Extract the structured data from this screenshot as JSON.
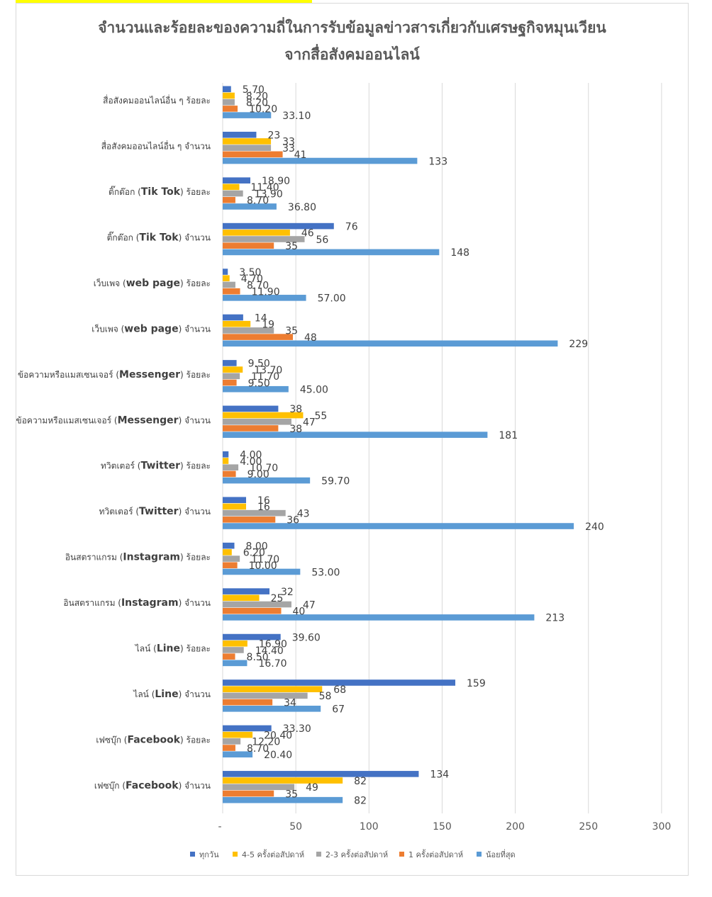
{
  "chart_data": {
    "type": "bar",
    "orientation": "horizontal",
    "title_line1": "จำนวนและร้อยละของความถี่ในการรับข้อมูลข่าวสารเกี่ยวกับเศรษฐกิจหมุนเวียน",
    "title_line2": "จากสื่อสังคมออนไลน์",
    "xlim": [
      0,
      300
    ],
    "xticks": [
      "-",
      "50",
      "100",
      "150",
      "200",
      "250",
      "300"
    ],
    "xtick_values": [
      0,
      50,
      100,
      150,
      200,
      250,
      300
    ],
    "grid": true,
    "legend_position": "bottom",
    "colors": [
      "#4472c4",
      "#ffc000",
      "#a5a5a5",
      "#ed7d31",
      "#5b9bd5"
    ],
    "categories": [
      {
        "pre": "สื่อสังคมออนไลน์อื่น ๆ ร้อยละ",
        "en": "",
        "post": ""
      },
      {
        "pre": "สื่อสังคมออนไลน์อื่น ๆ จำนวน",
        "en": "",
        "post": ""
      },
      {
        "pre": "ติ๊กต๊อก (",
        "en": "Tik Tok",
        "post": ") ร้อยละ"
      },
      {
        "pre": "ติ๊กต๊อก (",
        "en": "Tik Tok",
        "post": ") จำนวน"
      },
      {
        "pre": "เว็บเพจ (",
        "en": "web page",
        "post": ") ร้อยละ"
      },
      {
        "pre": "เว็บเพจ (",
        "en": "web page",
        "post": ") จำนวน"
      },
      {
        "pre": "ข้อความหรือแมสเซนเจอร์ (",
        "en": "Messenger",
        "post": ") ร้อยละ"
      },
      {
        "pre": "ข้อความหรือแมสเซนเจอร์ (",
        "en": "Messenger",
        "post": ") จำนวน"
      },
      {
        "pre": "ทวิตเตอร์ (",
        "en": "Twitter",
        "post": ") ร้อยละ"
      },
      {
        "pre": "ทวิตเตอร์ (",
        "en": "Twitter",
        "post": ") จำนวน"
      },
      {
        "pre": "อินสตราแกรม (",
        "en": "Instagram",
        "post": ") ร้อยละ"
      },
      {
        "pre": "อินสตราแกรม (",
        "en": "Instagram",
        "post": ") จำนวน"
      },
      {
        "pre": "ไลน์ (",
        "en": "Line",
        "post": ") ร้อยละ"
      },
      {
        "pre": "ไลน์ (",
        "en": "Line",
        "post": ") จำนวน"
      },
      {
        "pre": "เฟซบุ๊ก (",
        "en": "Facebook",
        "post": ") ร้อยละ"
      },
      {
        "pre": "เฟซบุ๊ก (",
        "en": "Facebook",
        "post": ") จำนวน"
      }
    ],
    "series": [
      {
        "name": "ทุกวัน",
        "values": [
          5.7,
          23,
          18.9,
          76,
          3.5,
          14,
          9.5,
          38,
          4.0,
          16,
          8.0,
          32,
          39.6,
          159,
          33.3,
          134
        ],
        "labels": [
          "5.70",
          "23",
          "18.90",
          "76",
          "3.50",
          "14",
          "9.50",
          "38",
          "4.00",
          "16",
          "8.00",
          "32",
          "39.60",
          "159",
          "33.30",
          "134"
        ]
      },
      {
        "name": "4-5 ครั้งต่อสัปดาห์",
        "values": [
          8.2,
          33,
          11.4,
          46,
          4.7,
          19,
          13.7,
          55,
          4.0,
          16,
          6.2,
          25,
          16.9,
          68,
          20.4,
          82
        ],
        "labels": [
          "8.20",
          "33",
          "11.40",
          "46",
          "4.70",
          "19",
          "13.70",
          "55",
          "4.00",
          "16",
          "6.20",
          "25",
          "16.90",
          "68",
          "20.40",
          "82"
        ]
      },
      {
        "name": "2-3 ครั้งต่อสัปดาห์",
        "values": [
          8.2,
          33,
          13.9,
          56,
          8.7,
          35,
          11.7,
          47,
          10.7,
          43,
          11.7,
          47,
          14.4,
          58,
          12.2,
          49
        ],
        "labels": [
          "8.20",
          "33",
          "13.90",
          "56",
          "8.70",
          "35",
          "11.70",
          "47",
          "10.70",
          "43",
          "11.70",
          "47",
          "14.40",
          "58",
          "12.20",
          "49"
        ]
      },
      {
        "name": "1 ครั้งต่อสัปดาห์",
        "values": [
          10.2,
          41,
          8.7,
          35,
          11.9,
          48,
          9.5,
          38,
          9.0,
          36,
          10.0,
          40,
          8.5,
          34,
          8.7,
          35
        ],
        "labels": [
          "10.20",
          "41",
          "8.70",
          "35",
          "11.90",
          "48",
          "9.50",
          "38",
          "9.00",
          "36",
          "10.00",
          "40",
          "8.50",
          "34",
          "8.70",
          "35"
        ]
      },
      {
        "name": "น้อยที่สุด",
        "values": [
          33.1,
          133,
          36.8,
          148,
          57.0,
          229,
          45.0,
          181,
          59.7,
          240,
          53.0,
          213,
          16.7,
          67,
          20.4,
          82
        ],
        "labels": [
          "33.10",
          "133",
          "36.80",
          "148",
          "57.00",
          "229",
          "45.00",
          "181",
          "59.70",
          "240",
          "53.00",
          "213",
          "16.70",
          "67",
          "20.40",
          "82"
        ]
      }
    ]
  }
}
